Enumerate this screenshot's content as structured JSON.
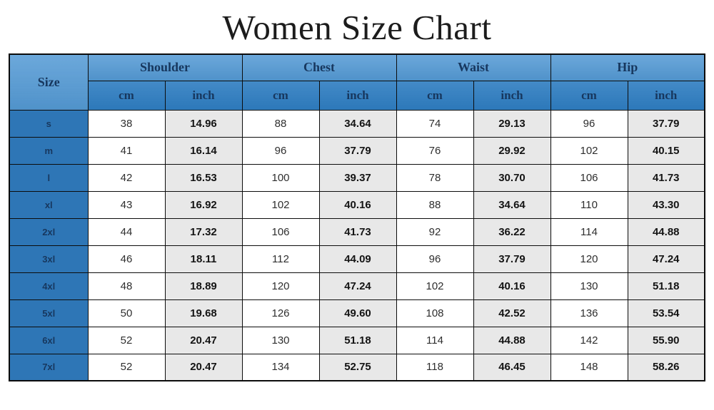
{
  "title": "Women Size Chart",
  "chart_data": {
    "type": "table",
    "title": "Women Size Chart",
    "column_groups": [
      {
        "label": "Size",
        "span": 1
      },
      {
        "label": "Shoulder",
        "span": 2
      },
      {
        "label": "Chest",
        "span": 2
      },
      {
        "label": "Waist",
        "span": 2
      },
      {
        "label": "Hip",
        "span": 2
      }
    ],
    "unit_labels": {
      "cm": "cm",
      "inch": "inch"
    },
    "rows": [
      {
        "size": "s",
        "shoulder_cm": "38",
        "shoulder_inch": "14.96",
        "chest_cm": "88",
        "chest_inch": "34.64",
        "waist_cm": "74",
        "waist_inch": "29.13",
        "hip_cm": "96",
        "hip_inch": "37.79"
      },
      {
        "size": "m",
        "shoulder_cm": "41",
        "shoulder_inch": "16.14",
        "chest_cm": "96",
        "chest_inch": "37.79",
        "waist_cm": "76",
        "waist_inch": "29.92",
        "hip_cm": "102",
        "hip_inch": "40.15"
      },
      {
        "size": "l",
        "shoulder_cm": "42",
        "shoulder_inch": "16.53",
        "chest_cm": "100",
        "chest_inch": "39.37",
        "waist_cm": "78",
        "waist_inch": "30.70",
        "hip_cm": "106",
        "hip_inch": "41.73"
      },
      {
        "size": "xl",
        "shoulder_cm": "43",
        "shoulder_inch": "16.92",
        "chest_cm": "102",
        "chest_inch": "40.16",
        "waist_cm": "88",
        "waist_inch": "34.64",
        "hip_cm": "110",
        "hip_inch": "43.30"
      },
      {
        "size": "2xl",
        "shoulder_cm": "44",
        "shoulder_inch": "17.32",
        "chest_cm": "106",
        "chest_inch": "41.73",
        "waist_cm": "92",
        "waist_inch": "36.22",
        "hip_cm": "114",
        "hip_inch": "44.88"
      },
      {
        "size": "3xl",
        "shoulder_cm": "46",
        "shoulder_inch": "18.11",
        "chest_cm": "112",
        "chest_inch": "44.09",
        "waist_cm": "96",
        "waist_inch": "37.79",
        "hip_cm": "120",
        "hip_inch": "47.24"
      },
      {
        "size": "4xl",
        "shoulder_cm": "48",
        "shoulder_inch": "18.89",
        "chest_cm": "120",
        "chest_inch": "47.24",
        "waist_cm": "102",
        "waist_inch": "40.16",
        "hip_cm": "130",
        "hip_inch": "51.18"
      },
      {
        "size": "5xl",
        "shoulder_cm": "50",
        "shoulder_inch": "19.68",
        "chest_cm": "126",
        "chest_inch": "49.60",
        "waist_cm": "108",
        "waist_inch": "42.52",
        "hip_cm": "136",
        "hip_inch": "53.54"
      },
      {
        "size": "6xl",
        "shoulder_cm": "52",
        "shoulder_inch": "20.47",
        "chest_cm": "130",
        "chest_inch": "51.18",
        "waist_cm": "114",
        "waist_inch": "44.88",
        "hip_cm": "142",
        "hip_inch": "55.90"
      },
      {
        "size": "7xl",
        "shoulder_cm": "52",
        "shoulder_inch": "20.47",
        "chest_cm": "134",
        "chest_inch": "52.75",
        "waist_cm": "118",
        "waist_inch": "46.45",
        "hip_cm": "148",
        "hip_inch": "58.26"
      }
    ]
  },
  "colors": {
    "group_header_bg": "#549ad5",
    "unit_header_bg": "#2e7dc1",
    "size_cell_bg": "#2e76b6",
    "header_text": "#17375e",
    "cm_cell_bg": "#ffffff",
    "inch_cell_bg": "#e8e8e8",
    "cm_text": "#2e2e2e",
    "inch_text": "#141414",
    "border": "#0c0c0c",
    "title_text": "#1c1c1c"
  }
}
